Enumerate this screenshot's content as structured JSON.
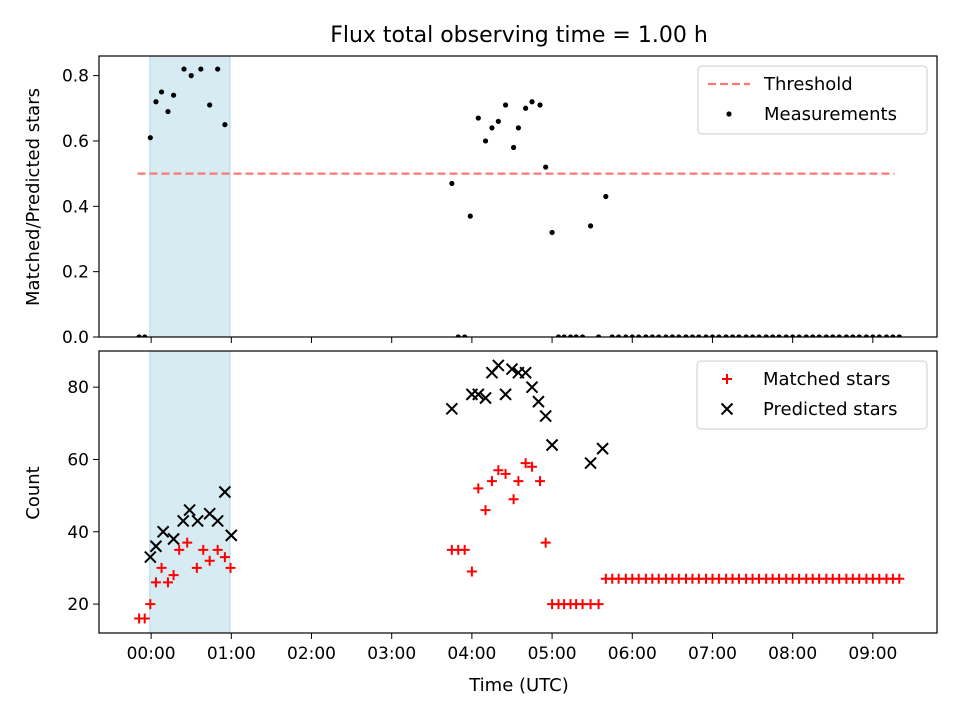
{
  "figure": {
    "title": "Flux total observing time = 1.00 h",
    "xlabel": "Time (UTC)",
    "xticks": [
      "00:00",
      "01:00",
      "02:00",
      "03:00",
      "04:00",
      "05:00",
      "06:00",
      "07:00",
      "08:00",
      "09:00"
    ],
    "shade_color": "#add8e6",
    "highlight_range": [
      "23:59",
      "00:59"
    ]
  },
  "chart_data": [
    {
      "type": "scatter",
      "ylabel": "Matched/Predicted stars",
      "xlim_hours": [
        -0.65,
        9.8
      ],
      "ylim": [
        0,
        0.86
      ],
      "yticks": [
        "0.0",
        "0.2",
        "0.4",
        "0.6",
        "0.8"
      ],
      "threshold": {
        "name": "Threshold",
        "y": 0.5,
        "x_range_hours": [
          -0.17,
          9.27
        ],
        "color": "#ff7777"
      },
      "series": [
        {
          "name": "Measurements",
          "color": "#000000",
          "marker": "dot",
          "x_hours": [
            -0.15,
            -0.08,
            -0.01,
            0.06,
            0.13,
            0.21,
            0.28,
            0.41,
            0.5,
            0.62,
            0.73,
            0.83,
            0.92,
            3.75,
            3.83,
            3.91,
            3.98,
            4.08,
            4.17,
            4.25,
            4.33,
            4.42,
            4.52,
            4.58,
            4.67,
            4.75,
            4.85,
            4.92,
            5.0,
            5.08,
            5.15,
            5.23,
            5.3,
            5.38,
            5.48,
            5.58,
            5.67,
            5.75,
            5.83,
            5.92,
            6.0,
            6.08,
            6.17,
            6.25,
            6.33,
            6.42,
            6.5,
            6.58,
            6.67,
            6.75,
            6.83,
            6.92,
            7.0,
            7.08,
            7.17,
            7.25,
            7.33,
            7.42,
            7.5,
            7.58,
            7.67,
            7.75,
            7.83,
            7.92,
            8.0,
            8.08,
            8.17,
            8.25,
            8.33,
            8.42,
            8.5,
            8.58,
            8.67,
            8.75,
            8.83,
            8.92,
            9.0,
            9.08,
            9.17,
            9.25,
            9.33
          ],
          "y": [
            0.0,
            0.0,
            0.61,
            0.72,
            0.75,
            0.69,
            0.74,
            0.82,
            0.8,
            0.82,
            0.71,
            0.82,
            0.65,
            0.47,
            0.0,
            0.0,
            0.37,
            0.67,
            0.6,
            0.64,
            0.66,
            0.71,
            0.58,
            0.64,
            0.7,
            0.72,
            0.71,
            0.52,
            0.32,
            0.0,
            0.0,
            0.0,
            0.0,
            0.0,
            0.34,
            0.0,
            0.43,
            0.0,
            0.0,
            0.0,
            0.0,
            0.0,
            0.0,
            0.0,
            0.0,
            0.0,
            0.0,
            0.0,
            0.0,
            0.0,
            0.0,
            0.0,
            0.0,
            0.0,
            0.0,
            0.0,
            0.0,
            0.0,
            0.0,
            0.0,
            0.0,
            0.0,
            0.0,
            0.0,
            0.0,
            0.0,
            0.0,
            0.0,
            0.0,
            0.0,
            0.0,
            0.0,
            0.0,
            0.0,
            0.0,
            0.0,
            0.0,
            0.0,
            0.0,
            0.0,
            0.0
          ]
        }
      ],
      "legend": {
        "position": "upper right",
        "entries": [
          "Threshold",
          "Measurements"
        ]
      }
    },
    {
      "type": "scatter",
      "ylabel": "Count",
      "xlim_hours": [
        -0.65,
        9.8
      ],
      "ylim": [
        12,
        90
      ],
      "yticks": [
        "20",
        "40",
        "60",
        "80"
      ],
      "series": [
        {
          "name": "Matched stars",
          "color": "#ff0000",
          "marker": "plus",
          "x_hours": [
            -0.15,
            -0.08,
            -0.01,
            0.06,
            0.13,
            0.21,
            0.28,
            0.35,
            0.45,
            0.57,
            0.65,
            0.73,
            0.83,
            0.92,
            0.99,
            3.75,
            3.83,
            3.91,
            4.0,
            4.08,
            4.17,
            4.25,
            4.33,
            4.42,
            4.52,
            4.58,
            4.67,
            4.75,
            4.85,
            4.92,
            5.0,
            5.08,
            5.15,
            5.23,
            5.3,
            5.38,
            5.48,
            5.58,
            5.67,
            5.75,
            5.83,
            5.92,
            6.0,
            6.08,
            6.17,
            6.25,
            6.33,
            6.42,
            6.5,
            6.58,
            6.67,
            6.75,
            6.83,
            6.92,
            7.0,
            7.08,
            7.17,
            7.25,
            7.33,
            7.42,
            7.5,
            7.58,
            7.67,
            7.75,
            7.83,
            7.92,
            8.0,
            8.08,
            8.17,
            8.25,
            8.33,
            8.42,
            8.5,
            8.58,
            8.67,
            8.75,
            8.83,
            8.92,
            9.0,
            9.08,
            9.17,
            9.25,
            9.33
          ],
          "y": [
            16,
            16,
            20,
            26,
            30,
            26,
            28,
            35,
            37,
            30,
            35,
            32,
            35,
            33,
            30,
            35,
            35,
            35,
            29,
            52,
            46,
            54,
            57,
            56,
            49,
            54,
            59,
            58,
            54,
            37,
            20,
            20,
            20,
            20,
            20,
            20,
            20,
            20,
            27,
            27,
            27,
            27,
            27,
            27,
            27,
            27,
            27,
            27,
            27,
            27,
            27,
            27,
            27,
            27,
            27,
            27,
            27,
            27,
            27,
            27,
            27,
            27,
            27,
            27,
            27,
            27,
            27,
            27,
            27,
            27,
            27,
            27,
            27,
            27,
            27,
            27,
            27,
            27,
            27,
            27,
            27,
            27,
            27
          ]
        },
        {
          "name": "Predicted stars",
          "color": "#000000",
          "marker": "cross",
          "x_hours": [
            -0.01,
            0.06,
            0.15,
            0.28,
            0.4,
            0.48,
            0.58,
            0.73,
            0.83,
            0.92,
            1.0,
            3.75,
            4.0,
            4.08,
            4.17,
            4.25,
            4.33,
            4.42,
            4.5,
            4.58,
            4.67,
            4.75,
            4.83,
            4.92,
            5.0,
            5.48,
            5.63
          ],
          "y": [
            33,
            36,
            40,
            38,
            43,
            46,
            43,
            45,
            43,
            51,
            39,
            74,
            78,
            78,
            77,
            84,
            86,
            78,
            85,
            84,
            84,
            80,
            76,
            72,
            64,
            59,
            63
          ]
        }
      ],
      "legend": {
        "position": "upper right",
        "entries": [
          "Matched stars",
          "Predicted stars"
        ]
      }
    }
  ]
}
